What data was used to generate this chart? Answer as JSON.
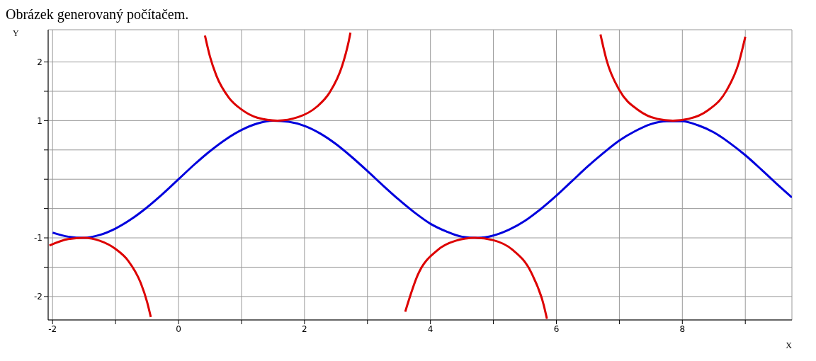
{
  "chart_data": {
    "type": "line",
    "title": "Obrázek generovaný počítačem.",
    "xlabel": "X",
    "ylabel": "Y",
    "xlim": [
      -2.07,
      9.74
    ],
    "ylim": [
      -2.4,
      2.55
    ],
    "xticks": [
      -2,
      {
        "value": -1,
        "label": null
      },
      0,
      {
        "value": 1,
        "label": null
      },
      2,
      {
        "value": 3,
        "label": null
      },
      4,
      {
        "value": 5,
        "label": null
      },
      6,
      {
        "value": 7,
        "label": null
      },
      8,
      {
        "value": 9,
        "label": null
      }
    ],
    "yticks": [
      -2,
      {
        "value": -1.5,
        "label": null
      },
      -1,
      {
        "value": -0.5,
        "label": null
      },
      {
        "value": 0,
        "label": null
      },
      {
        "value": 0.5,
        "label": null
      },
      1,
      {
        "value": 1.5,
        "label": null
      },
      2
    ],
    "grid": true,
    "legend": false,
    "marker": "none",
    "line_style": "solid",
    "series": [
      {
        "color": "#0000dd",
        "x": [
          -2,
          -1.75,
          -1.5,
          -1.25,
          -1,
          -0.75,
          -0.5,
          -0.25,
          0,
          0.25,
          0.5,
          0.75,
          1,
          1.25,
          1.5,
          1.75,
          2,
          2.25,
          2.5,
          2.75,
          3,
          3.25,
          3.5,
          3.75,
          4,
          4.25,
          4.5,
          4.75,
          5,
          5.25,
          5.5,
          5.75,
          6,
          6.25,
          6.5,
          6.75,
          7,
          7.25,
          7.5,
          7.75,
          8,
          8.25,
          8.5,
          8.75,
          9,
          9.25,
          9.5,
          9.74
        ],
        "values": [
          -0.91,
          -0.98,
          -1.0,
          -0.95,
          -0.84,
          -0.68,
          -0.48,
          -0.25,
          0,
          0.25,
          0.48,
          0.68,
          0.84,
          0.95,
          1.0,
          0.98,
          0.91,
          0.78,
          0.6,
          0.38,
          0.14,
          -0.11,
          -0.35,
          -0.57,
          -0.76,
          -0.89,
          -0.98,
          -1.0,
          -0.96,
          -0.86,
          -0.71,
          -0.51,
          -0.28,
          -0.03,
          0.22,
          0.45,
          0.66,
          0.82,
          0.94,
          0.99,
          0.99,
          0.92,
          0.8,
          0.62,
          0.41,
          0.17,
          -0.08,
          -0.31
        ]
      },
      {
        "color": "#dd0000",
        "x": [
          -2.05,
          -1.75,
          -1.5,
          -1.25,
          -1,
          -0.8,
          -0.6,
          -0.5,
          -0.44,
          0,
          0.42,
          0.5,
          0.6,
          0.8,
          1,
          1.25,
          1.57,
          1.9,
          2.2,
          2.4,
          2.6,
          2.7,
          2.73,
          3.14,
          3.6,
          3.8,
          4.1,
          4.4,
          4.71,
          5.0,
          5.3,
          5.6,
          5.8,
          5.85,
          6.28,
          6.7,
          6.8,
          7.0,
          7.3,
          7.6,
          7.85,
          8.1,
          8.4,
          8.7,
          8.9,
          9.0
        ],
        "values": [
          -1.13,
          -1.02,
          -1.0,
          -1.05,
          -1.19,
          -1.39,
          -1.77,
          -2.09,
          -2.35,
          null,
          2.45,
          2.09,
          1.77,
          1.39,
          1.19,
          1.05,
          1.0,
          1.06,
          1.24,
          1.48,
          1.94,
          2.34,
          2.5,
          null,
          -2.26,
          -1.63,
          -1.22,
          -1.05,
          -1.0,
          -1.04,
          -1.2,
          -1.59,
          -2.15,
          -2.38,
          null,
          2.47,
          2.02,
          1.52,
          1.18,
          1.03,
          1.0,
          1.03,
          1.17,
          1.51,
          2.0,
          2.43
        ]
      }
    ]
  }
}
